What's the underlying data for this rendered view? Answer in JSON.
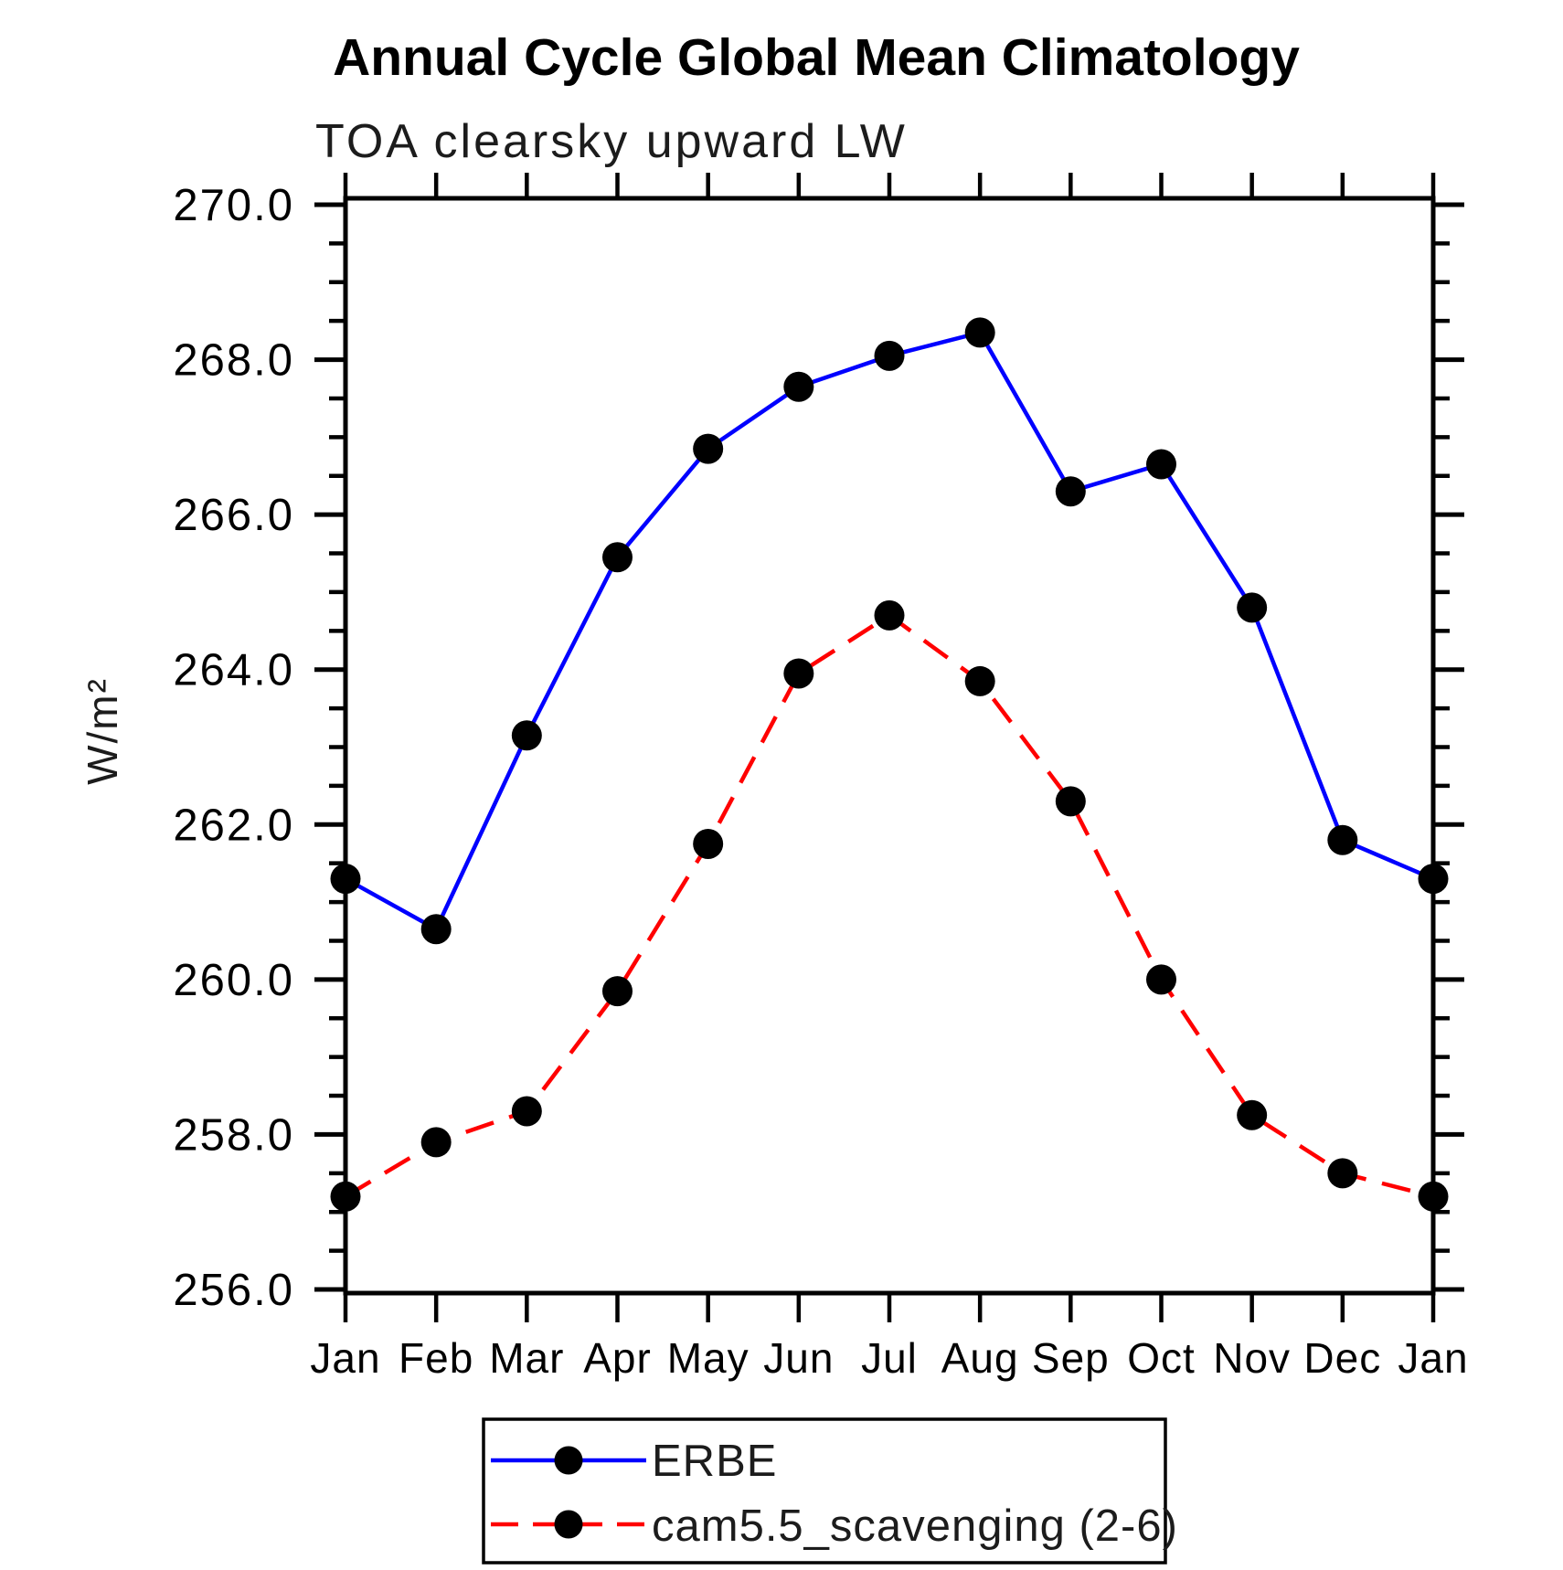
{
  "page": {
    "background": "#ffffff"
  },
  "chart_data": {
    "type": "line",
    "title": "Annual Cycle Global Mean Climatology",
    "subtitle": "TOA clearsky upward LW",
    "ylabel": "W/m²",
    "xlabel": "",
    "categories": [
      "Jan",
      "Feb",
      "Mar",
      "Apr",
      "May",
      "Jun",
      "Jul",
      "Aug",
      "Sep",
      "Oct",
      "Nov",
      "Dec",
      "Jan"
    ],
    "ylim": [
      256.0,
      270.0
    ],
    "ytick_major_interval": 2.0,
    "ytick_minor_interval": 0.5,
    "ytick_labels": [
      "256.0",
      "258.0",
      "260.0",
      "262.0",
      "264.0",
      "266.0",
      "268.0",
      "270.0"
    ],
    "grid": false,
    "legend_position": "bottom",
    "frame_color": "#000000",
    "series": [
      {
        "name": "ERBE",
        "color": "#0000ff",
        "style": "solid",
        "marker": "circle",
        "marker_color": "#000000",
        "values": [
          261.3,
          260.65,
          263.15,
          265.45,
          266.85,
          267.65,
          268.05,
          268.35,
          266.3,
          266.65,
          264.8,
          261.8,
          261.3
        ]
      },
      {
        "name": "cam5.5_scavenging (2-6)",
        "color": "#ff0000",
        "style": "dashed",
        "marker": "circle",
        "marker_color": "#000000",
        "values": [
          257.2,
          257.9,
          258.3,
          259.85,
          261.75,
          263.95,
          264.7,
          263.85,
          262.3,
          260.0,
          258.25,
          257.5,
          257.2
        ]
      }
    ]
  }
}
